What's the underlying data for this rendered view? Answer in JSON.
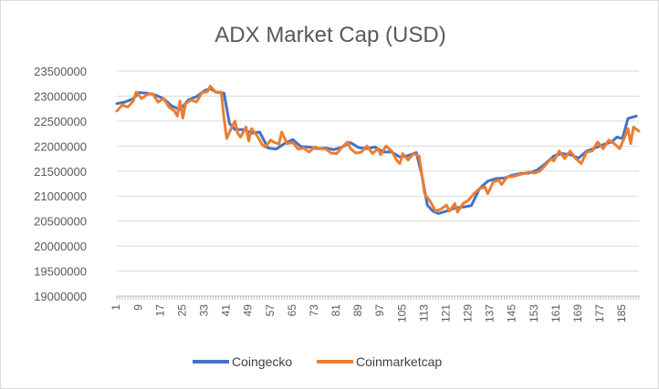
{
  "chart_data": {
    "type": "line",
    "title": "ADX Market Cap (USD)",
    "xlabel": "",
    "ylabel": "",
    "xlim": [
      1,
      191
    ],
    "ylim": [
      19000000,
      23500000
    ],
    "y_ticks": [
      19000000,
      19500000,
      20000000,
      20500000,
      21000000,
      21500000,
      22000000,
      22500000,
      23000000,
      23500000
    ],
    "x_ticks": [
      1,
      9,
      17,
      25,
      33,
      41,
      49,
      57,
      65,
      73,
      81,
      89,
      97,
      105,
      113,
      121,
      129,
      137,
      145,
      153,
      161,
      169,
      177,
      185
    ],
    "grid": true,
    "legend_position": "bottom",
    "series": [
      {
        "name": "Coingecko",
        "color": "#4472C4",
        "points": [
          [
            1,
            22850000
          ],
          [
            4,
            22880000
          ],
          [
            7,
            22950000
          ],
          [
            9,
            23070000
          ],
          [
            12,
            23060000
          ],
          [
            15,
            23020000
          ],
          [
            18,
            22950000
          ],
          [
            21,
            22800000
          ],
          [
            24,
            22730000
          ],
          [
            27,
            22920000
          ],
          [
            30,
            22990000
          ],
          [
            33,
            23110000
          ],
          [
            35,
            23150000
          ],
          [
            37,
            23080000
          ],
          [
            40,
            23060000
          ],
          [
            42,
            22450000
          ],
          [
            44,
            22330000
          ],
          [
            47,
            22330000
          ],
          [
            50,
            22260000
          ],
          [
            53,
            22280000
          ],
          [
            56,
            21960000
          ],
          [
            59,
            21940000
          ],
          [
            62,
            22050000
          ],
          [
            65,
            22130000
          ],
          [
            68,
            21990000
          ],
          [
            71,
            21980000
          ],
          [
            74,
            21950000
          ],
          [
            77,
            21960000
          ],
          [
            80,
            21930000
          ],
          [
            83,
            21980000
          ],
          [
            86,
            22070000
          ],
          [
            89,
            21970000
          ],
          [
            92,
            21950000
          ],
          [
            95,
            21980000
          ],
          [
            98,
            21880000
          ],
          [
            101,
            21880000
          ],
          [
            104,
            21780000
          ],
          [
            107,
            21810000
          ],
          [
            110,
            21870000
          ],
          [
            112,
            21420000
          ],
          [
            114,
            20820000
          ],
          [
            116,
            20700000
          ],
          [
            118,
            20650000
          ],
          [
            121,
            20700000
          ],
          [
            124,
            20760000
          ],
          [
            127,
            20780000
          ],
          [
            130,
            20810000
          ],
          [
            133,
            21150000
          ],
          [
            136,
            21300000
          ],
          [
            139,
            21350000
          ],
          [
            142,
            21360000
          ],
          [
            145,
            21420000
          ],
          [
            148,
            21450000
          ],
          [
            151,
            21460000
          ],
          [
            154,
            21520000
          ],
          [
            157,
            21650000
          ],
          [
            160,
            21800000
          ],
          [
            163,
            21850000
          ],
          [
            166,
            21830000
          ],
          [
            169,
            21760000
          ],
          [
            172,
            21900000
          ],
          [
            175,
            21960000
          ],
          [
            178,
            22030000
          ],
          [
            181,
            22080000
          ],
          [
            183,
            22180000
          ],
          [
            185,
            22150000
          ],
          [
            187,
            22550000
          ],
          [
            190,
            22600000
          ]
        ]
      },
      {
        "name": "Coinmarketcap",
        "color": "#ED7D31",
        "points": [
          [
            1,
            22700000
          ],
          [
            3,
            22820000
          ],
          [
            5,
            22780000
          ],
          [
            7,
            22900000
          ],
          [
            8,
            23080000
          ],
          [
            10,
            22950000
          ],
          [
            12,
            23030000
          ],
          [
            14,
            23050000
          ],
          [
            16,
            22880000
          ],
          [
            18,
            22950000
          ],
          [
            20,
            22780000
          ],
          [
            22,
            22700000
          ],
          [
            23,
            22600000
          ],
          [
            24,
            22900000
          ],
          [
            25,
            22560000
          ],
          [
            26,
            22850000
          ],
          [
            28,
            22920000
          ],
          [
            30,
            22880000
          ],
          [
            32,
            23070000
          ],
          [
            34,
            23090000
          ],
          [
            35,
            23200000
          ],
          [
            37,
            23080000
          ],
          [
            39,
            23080000
          ],
          [
            40,
            22550000
          ],
          [
            41,
            22150000
          ],
          [
            43,
            22400000
          ],
          [
            44,
            22500000
          ],
          [
            45,
            22250000
          ],
          [
            46,
            22180000
          ],
          [
            48,
            22380000
          ],
          [
            49,
            22100000
          ],
          [
            50,
            22350000
          ],
          [
            52,
            22210000
          ],
          [
            54,
            22020000
          ],
          [
            55,
            21980000
          ],
          [
            57,
            22120000
          ],
          [
            58,
            22080000
          ],
          [
            60,
            22040000
          ],
          [
            61,
            22280000
          ],
          [
            63,
            22050000
          ],
          [
            65,
            22070000
          ],
          [
            67,
            21940000
          ],
          [
            69,
            21960000
          ],
          [
            71,
            21880000
          ],
          [
            73,
            21980000
          ],
          [
            75,
            21950000
          ],
          [
            77,
            21940000
          ],
          [
            79,
            21860000
          ],
          [
            81,
            21850000
          ],
          [
            83,
            21980000
          ],
          [
            85,
            22080000
          ],
          [
            86,
            21950000
          ],
          [
            88,
            21860000
          ],
          [
            90,
            21880000
          ],
          [
            92,
            22000000
          ],
          [
            94,
            21850000
          ],
          [
            96,
            21950000
          ],
          [
            97,
            21830000
          ],
          [
            99,
            22000000
          ],
          [
            101,
            21900000
          ],
          [
            103,
            21700000
          ],
          [
            104,
            21650000
          ],
          [
            105,
            21850000
          ],
          [
            107,
            21720000
          ],
          [
            109,
            21850000
          ],
          [
            111,
            21800000
          ],
          [
            113,
            21050000
          ],
          [
            115,
            20900000
          ],
          [
            117,
            20700000
          ],
          [
            119,
            20740000
          ],
          [
            121,
            20820000
          ],
          [
            122,
            20700000
          ],
          [
            124,
            20850000
          ],
          [
            125,
            20680000
          ],
          [
            127,
            20850000
          ],
          [
            129,
            20920000
          ],
          [
            131,
            21050000
          ],
          [
            133,
            21150000
          ],
          [
            135,
            21180000
          ],
          [
            136,
            21050000
          ],
          [
            138,
            21280000
          ],
          [
            140,
            21320000
          ],
          [
            141,
            21230000
          ],
          [
            143,
            21380000
          ],
          [
            145,
            21390000
          ],
          [
            147,
            21420000
          ],
          [
            149,
            21450000
          ],
          [
            151,
            21480000
          ],
          [
            153,
            21460000
          ],
          [
            155,
            21500000
          ],
          [
            157,
            21620000
          ],
          [
            159,
            21750000
          ],
          [
            160,
            21700000
          ],
          [
            162,
            21900000
          ],
          [
            164,
            21750000
          ],
          [
            166,
            21900000
          ],
          [
            168,
            21750000
          ],
          [
            170,
            21650000
          ],
          [
            172,
            21880000
          ],
          [
            174,
            21900000
          ],
          [
            176,
            22080000
          ],
          [
            178,
            21950000
          ],
          [
            180,
            22120000
          ],
          [
            182,
            22050000
          ],
          [
            184,
            21950000
          ],
          [
            186,
            22200000
          ],
          [
            187,
            22350000
          ],
          [
            188,
            22050000
          ],
          [
            189,
            22380000
          ],
          [
            191,
            22300000
          ]
        ]
      }
    ]
  }
}
